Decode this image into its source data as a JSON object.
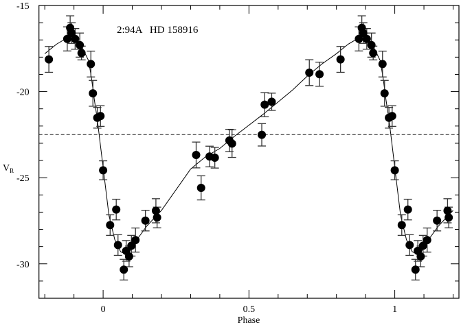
{
  "chart_data": {
    "type": "scatter",
    "title": "2:94A   HD 158916",
    "xlabel": "Phase",
    "ylabel": "V",
    "ylabel_subscript": "R",
    "xlim": [
      -0.22,
      1.22
    ],
    "ylim": [
      -32,
      -15
    ],
    "y_inverted_top_value": -15,
    "x_ticks": [
      0,
      0.5,
      1
    ],
    "x_tick_labels": [
      "0",
      "0.5",
      "1"
    ],
    "x_minor_step": 0.1,
    "y_ticks": [
      -15,
      -20,
      -25,
      -30
    ],
    "y_tick_labels": [
      "-15",
      "-20",
      "-25",
      "-30"
    ],
    "y_minor_step": 1,
    "grid": false,
    "legend": "none",
    "phase_repeated": true,
    "reference_line": {
      "y": -22.5,
      "style": "dashed",
      "color": "#555555"
    },
    "marker_color": "#000000",
    "errorbar_color": "#333333",
    "points": [
      {
        "phase": 0.0,
        "v": -24.57,
        "err": 0.55
      },
      {
        "phase": 0.024,
        "v": -27.75,
        "err": 0.6
      },
      {
        "phase": 0.045,
        "v": -26.85,
        "err": 0.6
      },
      {
        "phase": 0.051,
        "v": -28.91,
        "err": 0.6
      },
      {
        "phase": 0.071,
        "v": -30.34,
        "err": 0.6
      },
      {
        "phase": 0.079,
        "v": -29.25,
        "err": 0.6
      },
      {
        "phase": 0.089,
        "v": -29.57,
        "err": 0.6
      },
      {
        "phase": 0.097,
        "v": -28.95,
        "err": 0.6
      },
      {
        "phase": 0.111,
        "v": -28.62,
        "err": 0.7
      },
      {
        "phase": 0.145,
        "v": -27.49,
        "err": 0.6
      },
      {
        "phase": 0.181,
        "v": -26.92,
        "err": 0.7
      },
      {
        "phase": 0.185,
        "v": -27.31,
        "err": 0.6
      },
      {
        "phase": 0.319,
        "v": -23.68,
        "err": 0.75
      },
      {
        "phase": 0.336,
        "v": -25.59,
        "err": 0.7
      },
      {
        "phase": 0.365,
        "v": -23.77,
        "err": 0.6
      },
      {
        "phase": 0.383,
        "v": -23.84,
        "err": 0.6
      },
      {
        "phase": 0.433,
        "v": -22.84,
        "err": 0.65
      },
      {
        "phase": 0.442,
        "v": -23.02,
        "err": 0.8
      },
      {
        "phase": 0.544,
        "v": -22.51,
        "err": 0.65
      },
      {
        "phase": 0.554,
        "v": -20.76,
        "err": 0.7
      },
      {
        "phase": 0.578,
        "v": -20.59,
        "err": 0.5
      },
      {
        "phase": 0.707,
        "v": -18.9,
        "err": 0.75
      },
      {
        "phase": 0.742,
        "v": -18.99,
        "err": 0.7
      },
      {
        "phase": 0.814,
        "v": -18.13,
        "err": 0.75
      },
      {
        "phase": 0.877,
        "v": -16.94,
        "err": 0.7
      },
      {
        "phase": 0.887,
        "v": -16.3,
        "err": 0.7
      },
      {
        "phase": 0.892,
        "v": -16.6,
        "err": 0.6
      },
      {
        "phase": 0.904,
        "v": -16.94,
        "err": 0.6
      },
      {
        "phase": 0.92,
        "v": -17.3,
        "err": 0.7
      },
      {
        "phase": 0.926,
        "v": -17.76,
        "err": 0.4
      },
      {
        "phase": 0.958,
        "v": -18.4,
        "err": 0.75
      },
      {
        "phase": 0.965,
        "v": -20.1,
        "err": 0.75
      },
      {
        "phase": 0.98,
        "v": -21.52,
        "err": 0.6
      },
      {
        "phase": 0.991,
        "v": -21.42,
        "err": 0.6
      }
    ],
    "fit_curve": [
      [
        0.0,
        -24.4
      ],
      [
        0.02,
        -27.2
      ],
      [
        0.04,
        -28.6
      ],
      [
        0.06,
        -29.3
      ],
      [
        0.08,
        -29.45
      ],
      [
        0.1,
        -29.1
      ],
      [
        0.12,
        -28.5
      ],
      [
        0.15,
        -27.8
      ],
      [
        0.2,
        -26.9
      ],
      [
        0.25,
        -25.7
      ],
      [
        0.3,
        -24.5
      ],
      [
        0.35,
        -23.8
      ],
      [
        0.4,
        -23.3
      ],
      [
        0.45,
        -22.6
      ],
      [
        0.5,
        -21.95
      ],
      [
        0.55,
        -21.3
      ],
      [
        0.6,
        -20.6
      ],
      [
        0.65,
        -19.9
      ],
      [
        0.7,
        -19.1
      ],
      [
        0.75,
        -18.4
      ],
      [
        0.8,
        -17.8
      ],
      [
        0.84,
        -17.25
      ],
      [
        0.87,
        -16.95
      ],
      [
        0.89,
        -16.9
      ],
      [
        0.91,
        -17.1
      ],
      [
        0.93,
        -17.5
      ],
      [
        0.95,
        -18.2
      ],
      [
        0.96,
        -19.2
      ],
      [
        0.97,
        -20.5
      ],
      [
        0.98,
        -21.6
      ],
      [
        0.99,
        -23.0
      ],
      [
        1.0,
        -24.4
      ]
    ]
  }
}
